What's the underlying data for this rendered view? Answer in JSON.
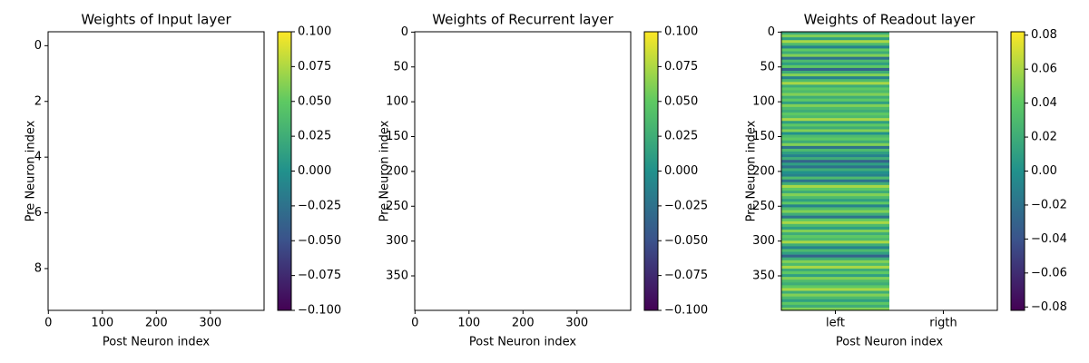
{
  "chart_data": [
    {
      "type": "heatmap",
      "title": "Weights of Input layer",
      "x_label": "Post Neuron index",
      "y_label": "Pre Neuron index",
      "xlim": [
        -0.5,
        399.5
      ],
      "xticks": [
        0,
        100,
        200,
        300
      ],
      "ylim": [
        9.5,
        -0.5
      ],
      "yticks": [
        0,
        2,
        4,
        6,
        8
      ],
      "colormap": "viridis",
      "clim": [
        -0.1,
        0.1
      ],
      "cticks": [
        {
          "value": -0.1,
          "label": "−0.100"
        },
        {
          "value": -0.075,
          "label": "−0.075"
        },
        {
          "value": -0.05,
          "label": "−0.050"
        },
        {
          "value": -0.025,
          "label": "−0.025"
        },
        {
          "value": 0,
          "label": "0.000"
        },
        {
          "value": 0.025,
          "label": "0.025"
        },
        {
          "value": 0.05,
          "label": "0.050"
        },
        {
          "value": 0.075,
          "label": "0.075"
        },
        {
          "value": 0.1,
          "label": "0.100"
        }
      ]
    },
    {
      "type": "heatmap",
      "title": "Weights of Recurrent layer",
      "x_label": "Post Neuron index",
      "y_label": "Pre Neuron index",
      "xlim": [
        -0.5,
        399.5
      ],
      "xticks": [
        0,
        100,
        200,
        300
      ],
      "ylim": [
        399.5,
        -0.5
      ],
      "yticks": [
        0,
        50,
        100,
        150,
        200,
        250,
        300,
        350
      ],
      "colormap": "viridis",
      "clim": [
        -0.1,
        0.1
      ],
      "cticks": [
        {
          "value": -0.1,
          "label": "−0.100"
        },
        {
          "value": -0.075,
          "label": "−0.075"
        },
        {
          "value": -0.05,
          "label": "−0.050"
        },
        {
          "value": -0.025,
          "label": "−0.025"
        },
        {
          "value": 0,
          "label": "0.000"
        },
        {
          "value": 0.025,
          "label": "0.025"
        },
        {
          "value": 0.05,
          "label": "0.050"
        },
        {
          "value": 0.075,
          "label": "0.075"
        },
        {
          "value": 0.1,
          "label": "0.100"
        }
      ]
    },
    {
      "type": "heatmap",
      "title": "Weights of Readout layer",
      "x_label": "Post Neuron index",
      "y_label": "Pre Neuron index",
      "categories": [
        "left",
        "rigth"
      ],
      "xlim": [
        -0.5,
        1.5
      ],
      "ylim": [
        399.5,
        -0.5
      ],
      "yticks": [
        0,
        50,
        100,
        150,
        200,
        250,
        300,
        350
      ],
      "colormap": "viridis",
      "clim": [
        -0.082,
        0.082
      ],
      "cticks": [
        {
          "value": -0.08,
          "label": "−0.08"
        },
        {
          "value": -0.06,
          "label": "−0.06"
        },
        {
          "value": -0.04,
          "label": "−0.04"
        },
        {
          "value": -0.02,
          "label": "−0.02"
        },
        {
          "value": 0,
          "label": "0.00"
        },
        {
          "value": 0.02,
          "label": "0.02"
        },
        {
          "value": 0.04,
          "label": "0.04"
        },
        {
          "value": 0.06,
          "label": "0.06"
        },
        {
          "value": 0.08,
          "label": "0.08"
        }
      ],
      "values": [
        [
          0.02,
          null
        ],
        [
          0.05,
          null
        ],
        [
          0.01,
          null
        ],
        [
          0.06,
          null
        ],
        [
          0.03,
          null
        ],
        [
          -0.01,
          null
        ],
        [
          0.04,
          null
        ],
        [
          0.02,
          null
        ],
        [
          0.05,
          null
        ],
        [
          -0.02,
          null
        ],
        [
          0.03,
          null
        ],
        [
          0.01,
          null
        ],
        [
          0.04,
          null
        ],
        [
          -0.03,
          null
        ],
        [
          0.02,
          null
        ],
        [
          0.05,
          null
        ],
        [
          -0.01,
          null
        ],
        [
          0.03,
          null
        ],
        [
          0.06,
          null
        ],
        [
          0.02,
          null
        ],
        [
          0.04,
          null
        ],
        [
          0.03,
          null
        ],
        [
          0.05,
          null
        ],
        [
          0.02,
          null
        ],
        [
          0.04,
          null
        ],
        [
          0.01,
          null
        ],
        [
          0.05,
          null
        ],
        [
          0.03,
          null
        ],
        [
          0.02,
          null
        ],
        [
          0.04,
          null
        ],
        [
          0.03,
          null
        ],
        [
          0.06,
          null
        ],
        [
          0.01,
          null
        ],
        [
          0.04,
          null
        ],
        [
          0.02,
          null
        ],
        [
          0.05,
          null
        ],
        [
          0.0,
          null
        ],
        [
          0.03,
          null
        ],
        [
          0.04,
          null
        ],
        [
          0.02,
          null
        ],
        [
          0.05,
          null
        ],
        [
          -0.02,
          null
        ],
        [
          0.03,
          null
        ],
        [
          0.01,
          null
        ],
        [
          -0.01,
          null
        ],
        [
          0.02,
          null
        ],
        [
          -0.03,
          null
        ],
        [
          0.01,
          null
        ],
        [
          -0.02,
          null
        ],
        [
          0.02,
          null
        ],
        [
          0.0,
          null
        ],
        [
          -0.01,
          null
        ],
        [
          0.03,
          null
        ],
        [
          -0.02,
          null
        ],
        [
          0.02,
          null
        ],
        [
          0.06,
          null
        ],
        [
          0.04,
          null
        ],
        [
          0.02,
          null
        ],
        [
          0.05,
          null
        ],
        [
          0.03,
          null
        ],
        [
          0.01,
          null
        ],
        [
          0.04,
          null
        ],
        [
          -0.01,
          null
        ],
        [
          0.03,
          null
        ],
        [
          0.05,
          null
        ],
        [
          0.02,
          null
        ],
        [
          -0.02,
          null
        ],
        [
          0.04,
          null
        ],
        [
          0.06,
          null
        ],
        [
          0.03,
          null
        ],
        [
          0.01,
          null
        ],
        [
          0.05,
          null
        ],
        [
          0.02,
          null
        ],
        [
          0.04,
          null
        ],
        [
          0.03,
          null
        ],
        [
          0.06,
          null
        ],
        [
          0.02,
          null
        ],
        [
          -0.01,
          null
        ],
        [
          0.03,
          null
        ],
        [
          0.01,
          null
        ],
        [
          -0.03,
          null
        ],
        [
          0.02,
          null
        ],
        [
          0.05,
          null
        ],
        [
          0.03,
          null
        ],
        [
          0.06,
          null
        ],
        [
          0.02,
          null
        ],
        [
          0.04,
          null
        ],
        [
          0.01,
          null
        ],
        [
          0.05,
          null
        ],
        [
          0.03,
          null
        ],
        [
          0.02,
          null
        ],
        [
          0.04,
          null
        ],
        [
          0.06,
          null
        ],
        [
          0.02,
          null
        ],
        [
          0.05,
          null
        ],
        [
          0.03,
          null
        ],
        [
          0.01,
          null
        ],
        [
          0.04,
          null
        ],
        [
          0.02,
          null
        ],
        [
          0.05,
          null
        ]
      ]
    }
  ]
}
